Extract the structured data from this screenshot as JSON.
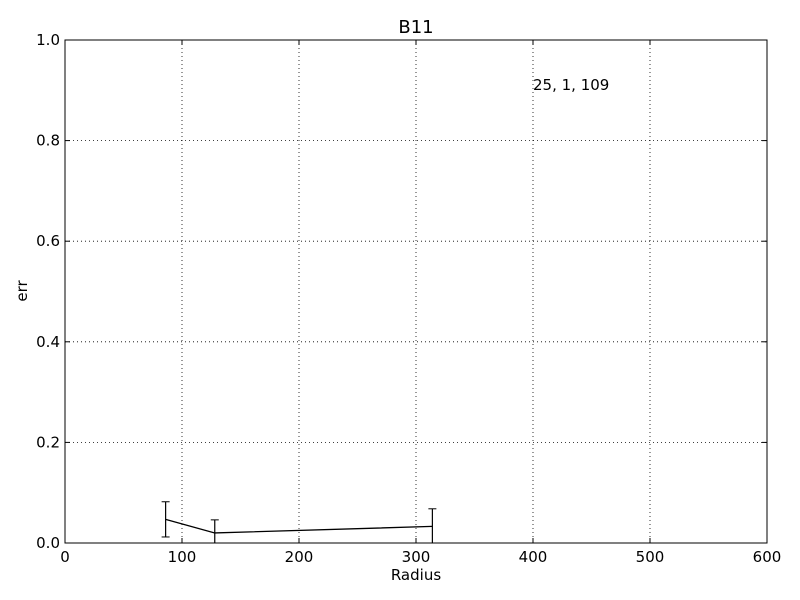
{
  "chart_data": {
    "type": "line",
    "title": "B11",
    "xlabel": "Radius",
    "ylabel": "err",
    "xlim": [
      0,
      600
    ],
    "ylim": [
      0,
      1.0
    ],
    "x_ticks": [
      0,
      100,
      200,
      300,
      400,
      500,
      600
    ],
    "x_tick_labels": [
      "0",
      "100",
      "200",
      "300",
      "400",
      "500",
      "600"
    ],
    "y_ticks": [
      0.0,
      0.2,
      0.4,
      0.6,
      0.8,
      1.0
    ],
    "y_tick_labels": [
      "0.0",
      "0.2",
      "0.4",
      "0.6",
      "0.8",
      "1.0"
    ],
    "grid": true,
    "annotation": "25, 1, 109",
    "series": [
      {
        "color": "#000000",
        "points": [
          {
            "x": 86,
            "y": 0.047,
            "err_low": 0.035,
            "err_high": 0.035
          },
          {
            "x": 128,
            "y": 0.02,
            "err_low": 0.026,
            "err_high": 0.026
          },
          {
            "x": 314,
            "y": 0.033,
            "err_low": 0.035,
            "err_high": 0.035
          }
        ]
      }
    ]
  }
}
